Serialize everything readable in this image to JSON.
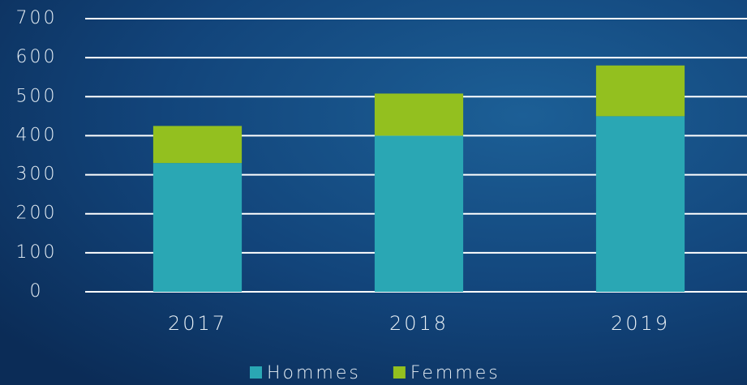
{
  "chart_data": {
    "type": "bar",
    "stacked": true,
    "categories": [
      "2017",
      "2018",
      "2019"
    ],
    "series": [
      {
        "name": "Hommes",
        "color": "#2aa7b4",
        "values": [
          330,
          400,
          450
        ]
      },
      {
        "name": "Femmes",
        "color": "#93c01f",
        "values": [
          95,
          108,
          130
        ]
      }
    ],
    "ylim": [
      0,
      700
    ],
    "yticks": [
      0,
      100,
      200,
      300,
      400,
      500,
      600,
      700
    ],
    "grid": true,
    "legend": "bottom"
  }
}
